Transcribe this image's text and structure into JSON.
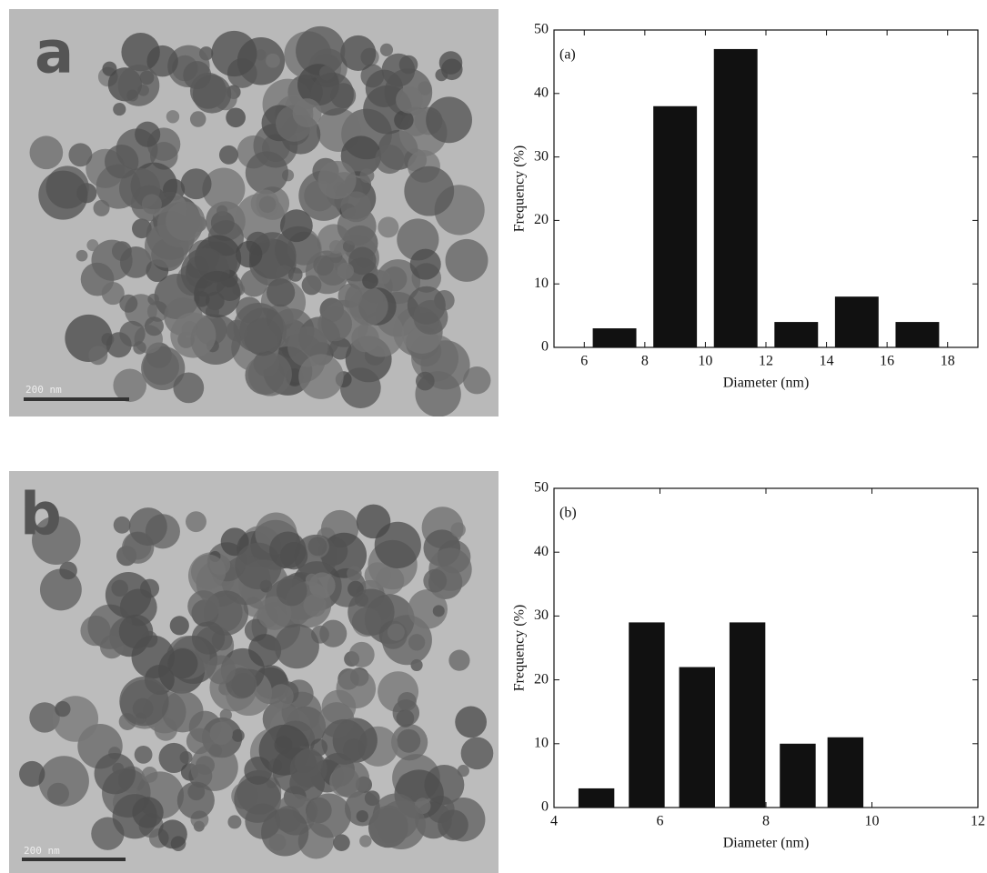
{
  "images": [
    {
      "label": "a",
      "scale_bar": "200 nm"
    },
    {
      "label": "b",
      "scale_bar": "200 nm"
    }
  ],
  "chart_data": [
    {
      "type": "bar",
      "annotation": "(a)",
      "x_label": "Diameter (nm)",
      "y_label": "Frequency (%)",
      "x": [
        7,
        9,
        11,
        13,
        15,
        17
      ],
      "values": [
        3,
        38,
        47,
        4,
        8,
        4
      ],
      "color": "#111111",
      "xlim": [
        5,
        19
      ],
      "xticks": [
        6,
        8,
        10,
        12,
        14,
        16,
        18
      ],
      "ylim": [
        0,
        50
      ],
      "yticks": [
        0,
        10,
        20,
        30,
        40,
        50
      ]
    },
    {
      "type": "bar",
      "annotation": "(b)",
      "x_label": "Diameter (nm)",
      "y_label": "Frequency (%)",
      "x": [
        4.8,
        5.75,
        6.7,
        7.65,
        8.6,
        9.5
      ],
      "values": [
        3,
        29,
        22,
        29,
        10,
        11
      ],
      "color": "#111111",
      "xlim": [
        4,
        12
      ],
      "xticks": [
        4,
        6,
        8,
        10,
        12
      ],
      "ylim": [
        0,
        50
      ],
      "yticks": [
        0,
        10,
        20,
        30,
        40,
        50
      ]
    }
  ]
}
